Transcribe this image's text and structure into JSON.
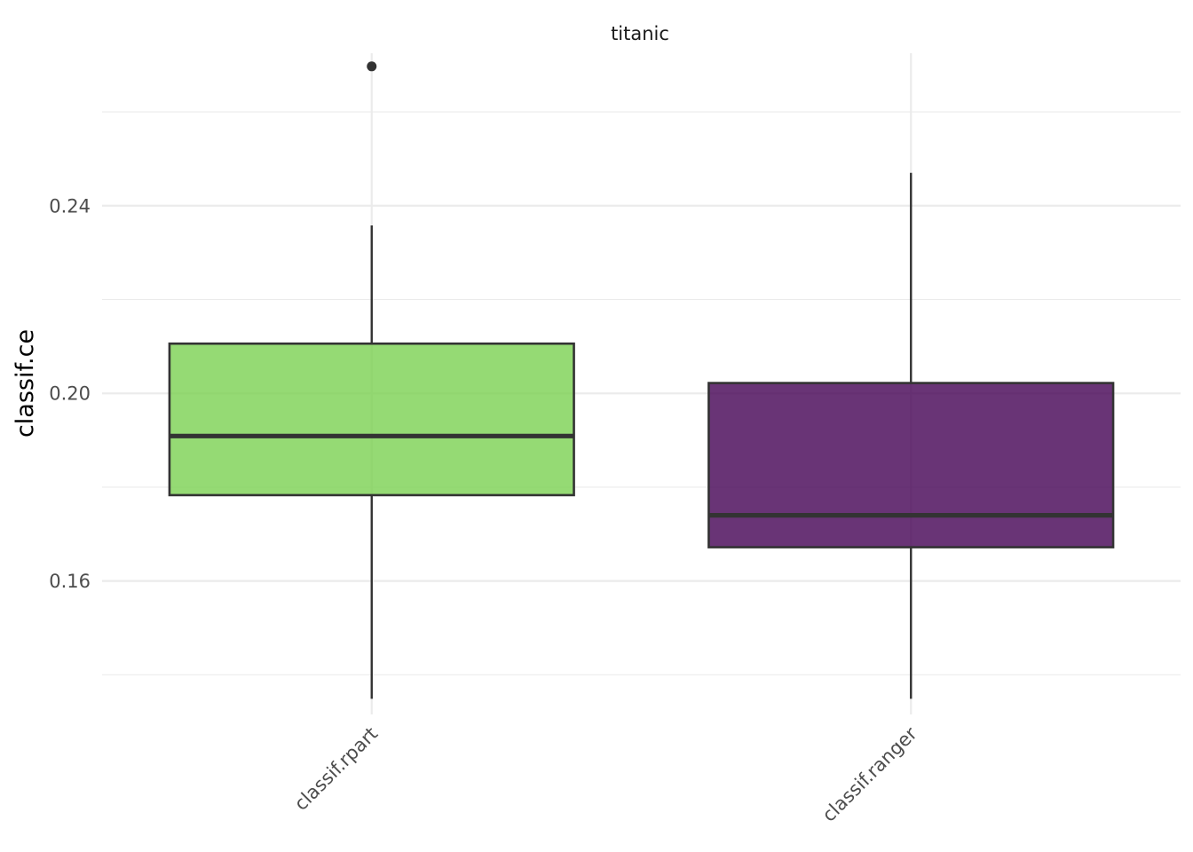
{
  "chart_data": {
    "type": "box",
    "title": "titanic",
    "xlabel": "",
    "ylabel": "classif.ce",
    "ylim": [
      0.1325,
      0.2725
    ],
    "yticks": [
      0.16,
      0.2,
      0.24
    ],
    "ytick_labels": [
      "0.16",
      "0.20",
      "0.24"
    ],
    "grid": true,
    "legend": "none",
    "categories": [
      "classif.rpart",
      "classif.ranger"
    ],
    "boxes": [
      {
        "name": "classif.rpart",
        "color": "#7ad151",
        "q1": 0.1783,
        "median": 0.1909,
        "q3": 0.2106,
        "whisker_low": 0.1349,
        "whisker_high": 0.2358,
        "outliers": [
          0.2697
        ]
      },
      {
        "name": "classif.ranger",
        "color": "#440154",
        "q1": 0.1672,
        "median": 0.174,
        "q3": 0.2022,
        "whisker_low": 0.1349,
        "whisker_high": 0.247,
        "outliers": []
      }
    ]
  }
}
